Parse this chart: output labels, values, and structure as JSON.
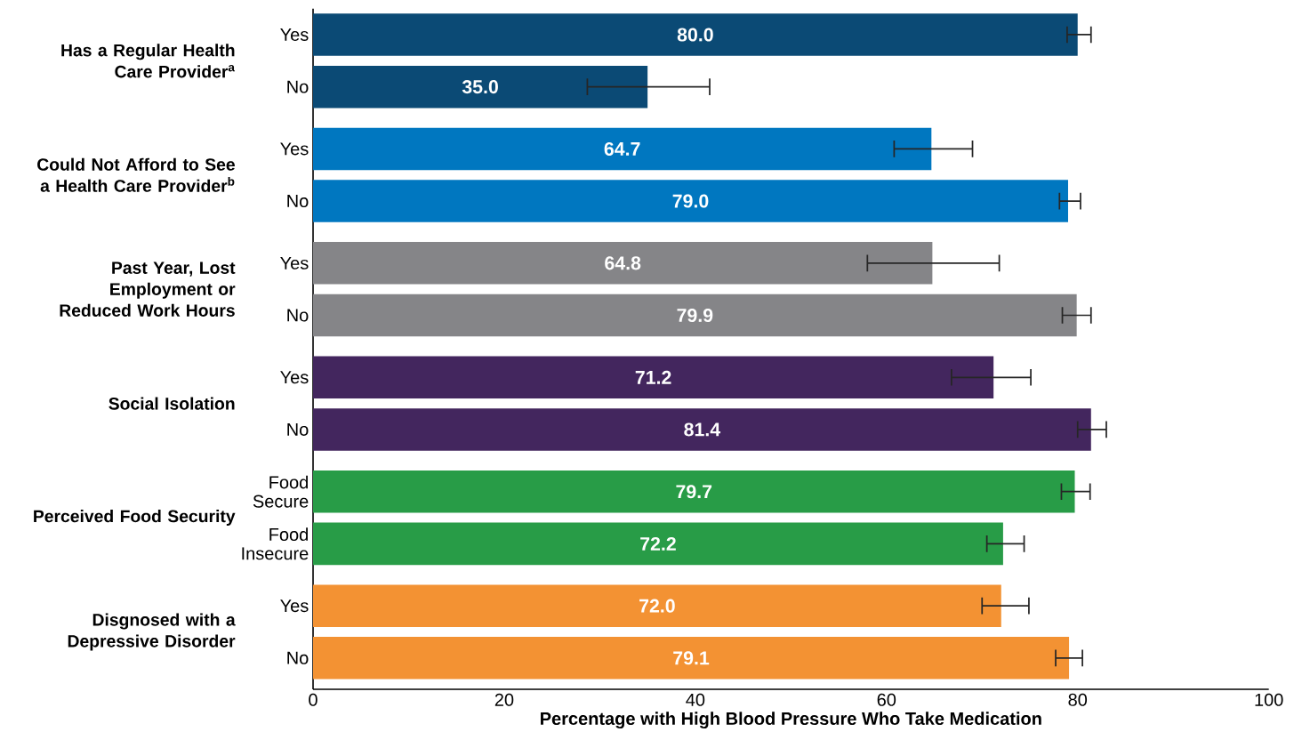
{
  "chart_data": {
    "type": "bar",
    "orientation": "horizontal",
    "xlabel": "Percentage with High Blood Pressure Who Take Medication",
    "categories": [
      "Yes",
      "No",
      "Yes",
      "No",
      "Yes",
      "No",
      "Yes",
      "No",
      "Food Secure",
      "Food Insecure",
      "Yes",
      "No"
    ],
    "values": [
      80.0,
      35.0,
      64.7,
      79.0,
      64.8,
      79.9,
      71.2,
      81.4,
      79.7,
      72.2,
      72.0,
      79.1
    ],
    "value_labels": [
      "80.0",
      "35.0",
      "64.7",
      "79.0",
      "64.8",
      "79.9",
      "71.2",
      "81.4",
      "79.7",
      "72.2",
      "72.0",
      "79.1"
    ],
    "errors": [
      [
        78.9,
        81.4
      ],
      [
        28.7,
        41.5
      ],
      [
        60.8,
        69.0
      ],
      [
        78.1,
        80.3
      ],
      [
        58.0,
        71.8
      ],
      [
        78.4,
        81.4
      ],
      [
        66.8,
        75.1
      ],
      [
        80.0,
        83.0
      ],
      [
        78.3,
        81.3
      ],
      [
        70.5,
        74.4
      ],
      [
        70.0,
        74.9
      ],
      [
        77.7,
        80.5
      ]
    ],
    "colors": [
      "#0b4a75",
      "#0b4a75",
      "#0077c0",
      "#0077c0",
      "#858588",
      "#858588",
      "#43265e",
      "#43265e",
      "#289c47",
      "#289c47",
      "#f39233",
      "#f39233"
    ],
    "annotations": [
      "Has a Regular Health Care Provider$^{a}$",
      "Could Not Afford to See a Health Care Provider$^{b}$",
      "Past Year, Lost Employment or Reduced Work Hours",
      "Social Isolation",
      "Perceived Food Security",
      "Disgnosed with a Depressive Disorder"
    ],
    "xlim": [
      0,
      100
    ],
    "xticks": [
      0,
      20,
      40,
      60,
      80,
      100
    ],
    "grid": false
  }
}
